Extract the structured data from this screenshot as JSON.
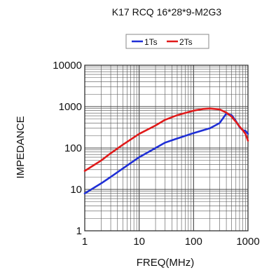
{
  "chart_data": {
    "type": "line",
    "title": "K17 RCQ 16*28*9-M2G3",
    "xlabel": "FREQ(MHz)",
    "ylabel": "IMPEDANCE",
    "x_scale": "log",
    "y_scale": "log",
    "xlim": [
      1,
      1000
    ],
    "ylim": [
      1,
      10000
    ],
    "grid": true,
    "legend_position": "top-center",
    "x_ticks": [
      "1",
      "10",
      "100",
      "1000"
    ],
    "y_ticks": [
      "1",
      "10",
      "100",
      "1000",
      "10000"
    ],
    "series": [
      {
        "name": "1Ts",
        "color": "#1f2fd6",
        "x": [
          1,
          2,
          3,
          5,
          10,
          20,
          30,
          50,
          100,
          200,
          300,
          400,
          500,
          600,
          700,
          800,
          900,
          1000
        ],
        "y": [
          8,
          14,
          20,
          32,
          60,
          100,
          135,
          170,
          230,
          300,
          400,
          680,
          620,
          450,
          320,
          270,
          260,
          220
        ]
      },
      {
        "name": "2Ts",
        "color": "#e01a1a",
        "x": [
          1,
          2,
          3,
          5,
          10,
          20,
          30,
          50,
          100,
          150,
          200,
          300,
          400,
          500,
          600,
          700,
          800,
          900,
          1000
        ],
        "y": [
          28,
          50,
          75,
          120,
          220,
          350,
          480,
          620,
          800,
          880,
          900,
          860,
          720,
          570,
          430,
          330,
          270,
          220,
          150
        ]
      }
    ]
  }
}
